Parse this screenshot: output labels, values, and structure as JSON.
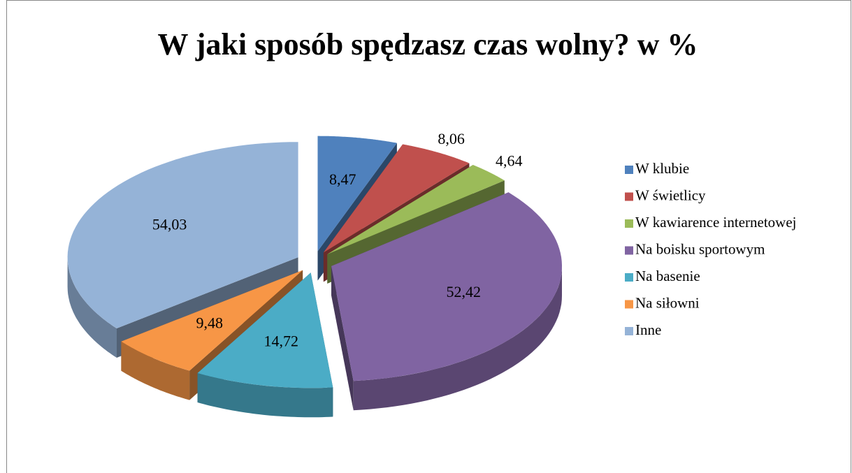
{
  "chart_data": {
    "type": "pie3d",
    "title": "W jaki sposób spędzasz czas wolny? w %",
    "categories": [
      "W klubie",
      "W świetlicy",
      "W kawiarence internetowej",
      "Na boisku sportowym",
      "Na basenie",
      "Na siłowni",
      "Inne"
    ],
    "values": [
      8.47,
      8.06,
      4.64,
      52.42,
      14.72,
      9.48,
      54.03
    ],
    "value_labels": [
      "8,47",
      "8,06",
      "4,64",
      "52,42",
      "14,72",
      "9,48",
      "54,03"
    ],
    "colors": [
      "#4f81bd",
      "#c0504d",
      "#9bbb59",
      "#8064a2",
      "#4bacc6",
      "#f79646",
      "#95b3d7"
    ],
    "legend": "right"
  }
}
